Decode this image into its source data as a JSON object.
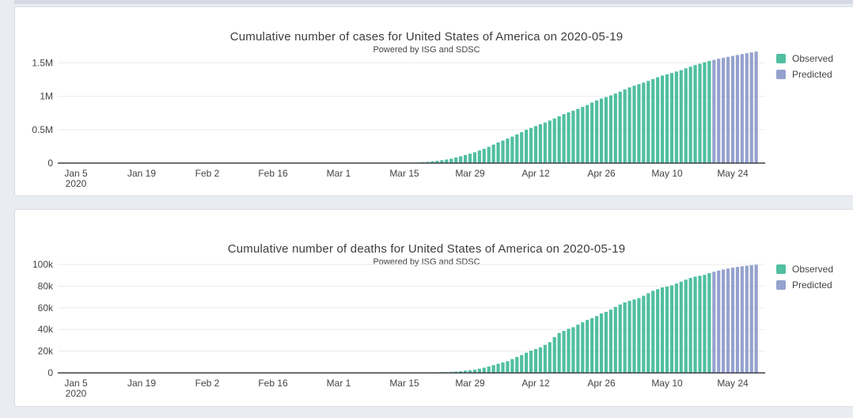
{
  "page": {
    "background_color": "#e9edf2",
    "card_color": "#ffffff",
    "top_strip_color": "#d4d9e3",
    "text_color": "#444444",
    "observed_color": "#50bfa0",
    "predicted_color": "#95a2ce"
  },
  "chart_data": [
    {
      "type": "bar",
      "title": "Cumulative number of cases for United States of America on 2020-05-19",
      "subtitle": "Powered by ISG and SDSC",
      "start_date": "2020-01-05",
      "xlabel": "",
      "ylabel": "",
      "grid": true,
      "legend_position": "right",
      "x_tick_days": [
        0,
        14,
        28,
        42,
        56,
        70,
        84,
        98,
        112,
        126,
        140
      ],
      "x_tick_labels": [
        "Jan 5",
        "Jan 19",
        "Feb 2",
        "Feb 16",
        "Mar 1",
        "Mar 15",
        "Mar 29",
        "Apr 12",
        "Apr 26",
        "May 10",
        "May 24"
      ],
      "x_first_tick_sublabel": "2020",
      "ylim": [
        0,
        1700000
      ],
      "y_ticks": [
        {
          "v": 0,
          "label": "0"
        },
        {
          "v": 500000,
          "label": "0.5M"
        },
        {
          "v": 1000000,
          "label": "1M"
        },
        {
          "v": 1500000,
          "label": "1.5M"
        }
      ],
      "series": [
        {
          "name": "Observed",
          "color": "#50bfa0",
          "start_day": 0,
          "values": [
            0,
            0,
            0,
            0,
            0,
            0,
            0,
            0,
            0,
            0,
            0,
            0,
            0,
            0,
            0,
            0,
            0,
            1,
            1,
            2,
            2,
            5,
            5,
            5,
            5,
            6,
            7,
            8,
            8,
            11,
            11,
            11,
            11,
            11,
            11,
            11,
            11,
            12,
            12,
            13,
            13,
            13,
            13,
            13,
            13,
            13,
            13,
            15,
            15,
            15,
            15,
            15,
            15,
            16,
            16,
            24,
            30,
            53,
            73,
            104,
            174,
            222,
            337,
            451,
            519,
            711,
            1109,
            1561,
            2157,
            2870,
            3579,
            4500,
            6135,
            8760,
            13159,
            18905,
            25399,
            33125,
            43449,
            53568,
            65856,
            83836,
            101657,
            121117,
            140909,
            161831,
            188172,
            213372,
            243762,
            275586,
            308853,
            337072,
            366667,
            396223,
            429052,
            461437,
            496535,
            526396,
            555313,
            580619,
            607670,
            636350,
            667592,
            699706,
            732197,
            759086,
            784326,
            811865,
            840351,
            869170,
            905358,
            938154,
            965785,
            988197,
            1012582,
            1039909,
            1069424,
            1103461,
            1132539,
            1158040,
            1180375,
            1204351,
            1229331,
            1257023,
            1283929,
            1309541,
            1329260,
            1347881,
            1369964,
            1390406,
            1417774,
            1442824,
            1467820,
            1486757,
            1508308,
            1528568
          ]
        },
        {
          "name": "Predicted",
          "color": "#95a2ce",
          "start_day": 136,
          "values": [
            1544000,
            1560000,
            1575000,
            1590000,
            1604000,
            1618000,
            1631000,
            1644000,
            1656000,
            1668000
          ]
        }
      ]
    },
    {
      "type": "bar",
      "title": "Cumulative number of deaths for United States of America on 2020-05-19",
      "subtitle": "Powered by ISG and SDSC",
      "start_date": "2020-01-05",
      "xlabel": "",
      "ylabel": "",
      "grid": true,
      "legend_position": "right",
      "x_tick_days": [
        0,
        14,
        28,
        42,
        56,
        70,
        84,
        98,
        112,
        126,
        140
      ],
      "x_tick_labels": [
        "Jan 5",
        "Jan 19",
        "Feb 2",
        "Feb 16",
        "Mar 1",
        "Mar 15",
        "Mar 29",
        "Apr 12",
        "Apr 26",
        "May 10",
        "May 24"
      ],
      "x_first_tick_sublabel": "2020",
      "ylim": [
        0,
        104000
      ],
      "y_ticks": [
        {
          "v": 0,
          "label": "0"
        },
        {
          "v": 20000,
          "label": "20k"
        },
        {
          "v": 40000,
          "label": "40k"
        },
        {
          "v": 60000,
          "label": "60k"
        },
        {
          "v": 80000,
          "label": "80k"
        },
        {
          "v": 100000,
          "label": "100k"
        }
      ],
      "series": [
        {
          "name": "Observed",
          "color": "#50bfa0",
          "start_day": 0,
          "values": [
            0,
            0,
            0,
            0,
            0,
            0,
            0,
            0,
            0,
            0,
            0,
            0,
            0,
            0,
            0,
            0,
            0,
            0,
            0,
            0,
            0,
            0,
            0,
            0,
            0,
            0,
            0,
            0,
            0,
            0,
            0,
            0,
            0,
            0,
            0,
            0,
            0,
            0,
            0,
            0,
            0,
            0,
            0,
            0,
            0,
            0,
            0,
            0,
            0,
            0,
            0,
            0,
            0,
            0,
            0,
            1,
            1,
            6,
            7,
            11,
            12,
            14,
            17,
            21,
            22,
            28,
            31,
            40,
            47,
            54,
            63,
            85,
            108,
            118,
            200,
            244,
            307,
            417,
            557,
            706,
            942,
            1209,
            1581,
            2026,
            2467,
            2978,
            3873,
            4757,
            5926,
            7087,
            8407,
            9619,
            10783,
            12722,
            14695,
            16478,
            18586,
            20463,
            22020,
            23529,
            25832,
            28326,
            32916,
            36773,
            38664,
            40661,
            42094,
            44447,
            46611,
            48816,
            50372,
            52404,
            54856,
            56259,
            58355,
            60853,
            62996,
            64943,
            66369,
            67682,
            68922,
            71064,
            73455,
            75662,
            77180,
            78795,
            79526,
            80682,
            82356,
            84119,
            85906,
            87530,
            88754,
            89564,
            90347,
            91921
          ]
        },
        {
          "name": "Predicted",
          "color": "#95a2ce",
          "start_day": 136,
          "values": [
            93200,
            94300,
            95300,
            96200,
            97000,
            97700,
            98300,
            98800,
            99300,
            99700
          ]
        }
      ]
    }
  ]
}
